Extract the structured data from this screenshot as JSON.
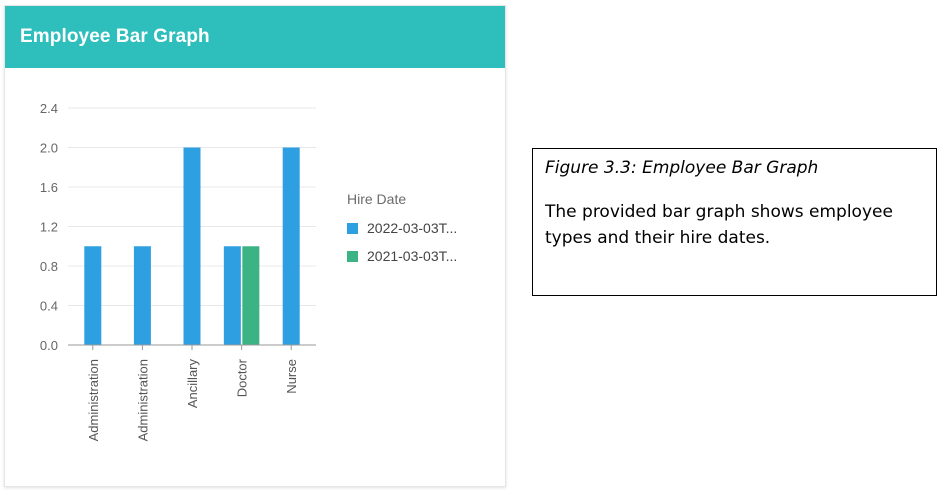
{
  "card": {
    "title": "Employee Bar Graph"
  },
  "caption": {
    "title": "Figure 3.3: Employee Bar Graph",
    "text": "The provided bar graph shows employee types and their hire dates."
  },
  "chart_data": {
    "type": "bar",
    "categories": [
      "Administration",
      "Administration",
      "Ancillary",
      "Doctor",
      "Nurse"
    ],
    "series": [
      {
        "name": "2022-03-03T...",
        "color": "#2e9fe0",
        "values": [
          1,
          1,
          2,
          1,
          2
        ]
      },
      {
        "name": "2021-03-03T...",
        "color": "#3bb384",
        "values": [
          null,
          null,
          null,
          1,
          null
        ]
      }
    ],
    "ylim": [
      0,
      2.4
    ],
    "yticks": [
      "0.0",
      "0.4",
      "0.8",
      "1.2",
      "1.6",
      "2.0",
      "2.4"
    ],
    "legend": {
      "title": "Hire Date",
      "position": "right"
    },
    "grid": true,
    "xlabel": "",
    "ylabel": ""
  }
}
